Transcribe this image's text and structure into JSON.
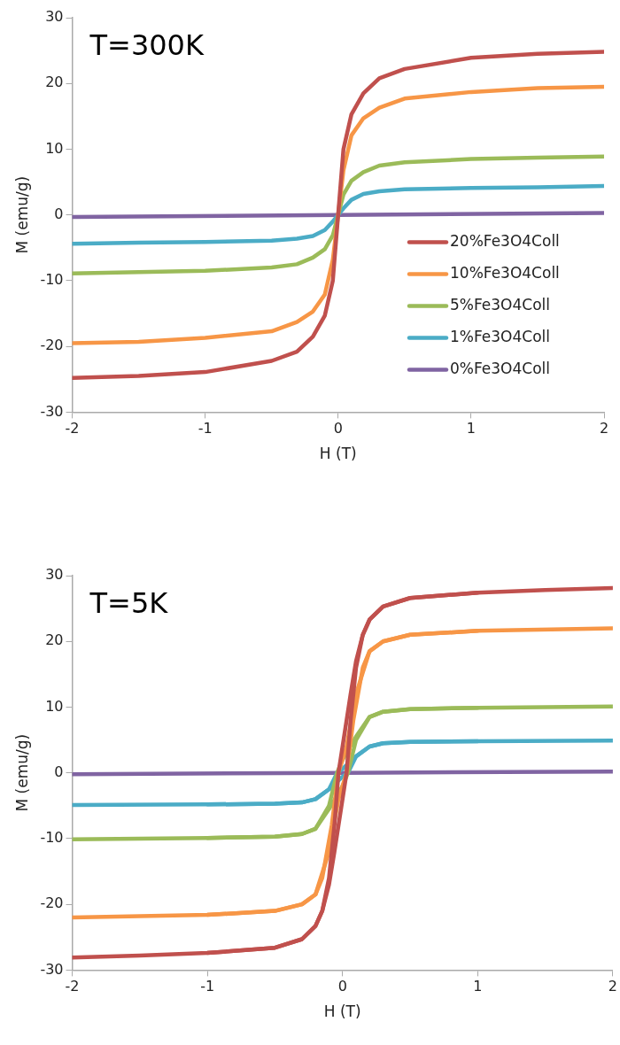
{
  "chart_data": [
    {
      "type": "line",
      "xlabel": "H (T)",
      "ylabel": "M (emu/g)",
      "annotations": [
        "T=300K"
      ],
      "xlim": [
        -2,
        2
      ],
      "xticks": [
        -2,
        -1,
        0,
        1,
        2
      ],
      "ylim": [
        -30,
        30
      ],
      "yticks": [
        -30,
        -20,
        -10,
        0,
        10,
        20,
        30
      ],
      "grid": false,
      "legend": "bottom right",
      "marker": "none",
      "line_style": "solid",
      "series": [
        {
          "name": "20%Fe3O4Coll",
          "color": "#c0504d",
          "x": [
            -2,
            -1.5,
            -1,
            -0.5,
            -0.31,
            -0.19,
            -0.1,
            -0.04,
            0,
            0.04,
            0.1,
            0.19,
            0.31,
            0.5,
            1,
            1.5,
            2
          ],
          "values": [
            -24.8,
            -24.5,
            -23.9,
            -22.2,
            -20.8,
            -18.5,
            -15.3,
            -10,
            0,
            10,
            15.3,
            18.5,
            20.8,
            22.2,
            23.9,
            24.5,
            24.8
          ]
        },
        {
          "name": "10%Fe3O4Coll",
          "color": "#f79646",
          "x": [
            -2,
            -1.5,
            -1,
            -0.5,
            -0.31,
            -0.19,
            -0.1,
            -0.04,
            0,
            0.04,
            0.1,
            0.19,
            0.31,
            0.5,
            1,
            1.5,
            2
          ],
          "values": [
            -19.5,
            -19.3,
            -18.7,
            -17.7,
            -16.3,
            -14.7,
            -12.1,
            -6.8,
            0,
            6.8,
            12.1,
            14.7,
            16.3,
            17.7,
            18.7,
            19.3,
            19.5
          ]
        },
        {
          "name": "5%Fe3O4Coll",
          "color": "#9bbb59",
          "x": [
            -2,
            -1.5,
            -1,
            -0.5,
            -0.31,
            -0.19,
            -0.1,
            -0.04,
            0,
            0.04,
            0.1,
            0.19,
            0.31,
            0.5,
            1,
            1.5,
            2
          ],
          "values": [
            -8.9,
            -8.7,
            -8.5,
            -8.0,
            -7.5,
            -6.5,
            -5.2,
            -3.1,
            0,
            3.1,
            5.2,
            6.5,
            7.5,
            8.0,
            8.5,
            8.7,
            8.9
          ]
        },
        {
          "name": "1%Fe3O4Coll",
          "color": "#4bacc6",
          "x": [
            -2,
            -1.5,
            -1,
            -0.5,
            -0.31,
            -0.19,
            -0.1,
            -0.04,
            0,
            0.04,
            0.1,
            0.19,
            0.31,
            0.5,
            1,
            1.5,
            2
          ],
          "values": [
            -4.4,
            -4.2,
            -4.1,
            -3.9,
            -3.6,
            -3.2,
            -2.3,
            -1.0,
            0,
            1.0,
            2.3,
            3.2,
            3.6,
            3.9,
            4.1,
            4.2,
            4.4
          ]
        },
        {
          "name": "0%Fe3O4Coll",
          "color": "#8064a2",
          "x": [
            -2,
            0,
            2
          ],
          "values": [
            -0.3,
            0,
            0.3
          ]
        }
      ]
    },
    {
      "type": "line",
      "xlabel": "H (T)",
      "ylabel": "M (emu/g)",
      "annotations": [
        "T=5K"
      ],
      "xlim": [
        -2,
        2
      ],
      "xticks": [
        -2,
        -1,
        0,
        1,
        2
      ],
      "ylim": [
        -30,
        30
      ],
      "yticks": [
        -30,
        -20,
        -10,
        0,
        10,
        20,
        30
      ],
      "grid": false,
      "marker": "none",
      "line_style": "solid",
      "series": [
        {
          "color": "#c0504d",
          "x": [
            -2,
            -1.5,
            -1,
            -0.5,
            -0.3,
            -0.2,
            -0.15,
            -0.1,
            -0.06,
            -0.03,
            0,
            0.03,
            0.06,
            0.1,
            0.15,
            0.2,
            0.3,
            0.5,
            1,
            1.5,
            2
          ],
          "values": [
            -28.1,
            -27.8,
            -27.4,
            -26.6,
            -25.3,
            -23.3,
            -21,
            -16,
            -8,
            0,
            4,
            8,
            12,
            17,
            21,
            23.3,
            25.3,
            26.6,
            27.4,
            27.8,
            28.1
          ]
        },
        {
          "color": "#c0504d",
          "x": [
            -1,
            -0.5,
            -0.3,
            -0.2,
            -0.15,
            -0.1,
            -0.06,
            -0.03,
            0,
            0.03,
            0.06,
            0.1,
            0.15,
            0.2,
            0.3,
            0.5,
            1
          ],
          "values": [
            -27.4,
            -26.6,
            -25.3,
            -23.3,
            -21,
            -17,
            -12,
            -8,
            -4,
            0,
            8,
            16,
            21,
            23.3,
            25.3,
            26.6,
            27.4
          ]
        },
        {
          "color": "#f79646",
          "x": [
            -2,
            -1,
            -0.5,
            -0.3,
            -0.2,
            -0.15,
            -0.08,
            -0.03,
            0.03,
            0.1,
            0.2,
            0.3,
            0.5,
            1,
            2
          ],
          "values": [
            -22,
            -21.6,
            -21,
            -20,
            -18.5,
            -16,
            -8,
            0,
            4,
            12,
            18.5,
            20,
            21,
            21.6,
            22
          ]
        },
        {
          "color": "#f79646",
          "x": [
            -1,
            -0.5,
            -0.3,
            -0.2,
            -0.1,
            -0.03,
            0.03,
            0.08,
            0.15,
            0.2,
            0.3,
            0.5,
            1
          ],
          "values": [
            -21.6,
            -21,
            -20,
            -18.5,
            -12,
            -4,
            0,
            8,
            16,
            18.5,
            20,
            21,
            21.6
          ]
        },
        {
          "color": "#9bbb59",
          "x": [
            -2,
            -1,
            -0.5,
            -0.3,
            -0.2,
            -0.1,
            -0.04,
            0,
            0.1,
            0.2,
            0.3,
            0.5,
            1,
            2
          ],
          "values": [
            -10.1,
            -9.9,
            -9.7,
            -9.3,
            -8.5,
            -5,
            0,
            2,
            5.5,
            8.5,
            9.3,
            9.7,
            9.9,
            10.1
          ]
        },
        {
          "color": "#9bbb59",
          "x": [
            -1,
            -0.5,
            -0.3,
            -0.2,
            -0.1,
            0,
            0.04,
            0.1,
            0.2,
            0.3,
            0.5,
            1
          ],
          "values": [
            -9.9,
            -9.7,
            -9.3,
            -8.5,
            -5.5,
            -2,
            0,
            5,
            8.5,
            9.3,
            9.7,
            9.9
          ]
        },
        {
          "color": "#4bacc6",
          "x": [
            -2,
            -1,
            -0.5,
            -0.3,
            -0.2,
            -0.1,
            -0.04,
            0,
            0.1,
            0.2,
            0.3,
            0.5,
            1,
            2
          ],
          "values": [
            -4.9,
            -4.8,
            -4.7,
            -4.5,
            -4.0,
            -2.5,
            0,
            0.6,
            2.5,
            4.0,
            4.5,
            4.7,
            4.8,
            4.9
          ]
        },
        {
          "color": "#4bacc6",
          "x": [
            -1,
            -0.5,
            -0.3,
            -0.2,
            -0.1,
            0,
            0.04,
            0.1,
            0.2,
            0.3,
            0.5,
            1
          ],
          "values": [
            -4.8,
            -4.7,
            -4.5,
            -4.0,
            -2.5,
            -0.6,
            0,
            2.5,
            4.0,
            4.5,
            4.7,
            4.8
          ]
        },
        {
          "color": "#8064a2",
          "x": [
            -2,
            0,
            2
          ],
          "values": [
            -0.2,
            0,
            0.2
          ]
        }
      ]
    }
  ]
}
